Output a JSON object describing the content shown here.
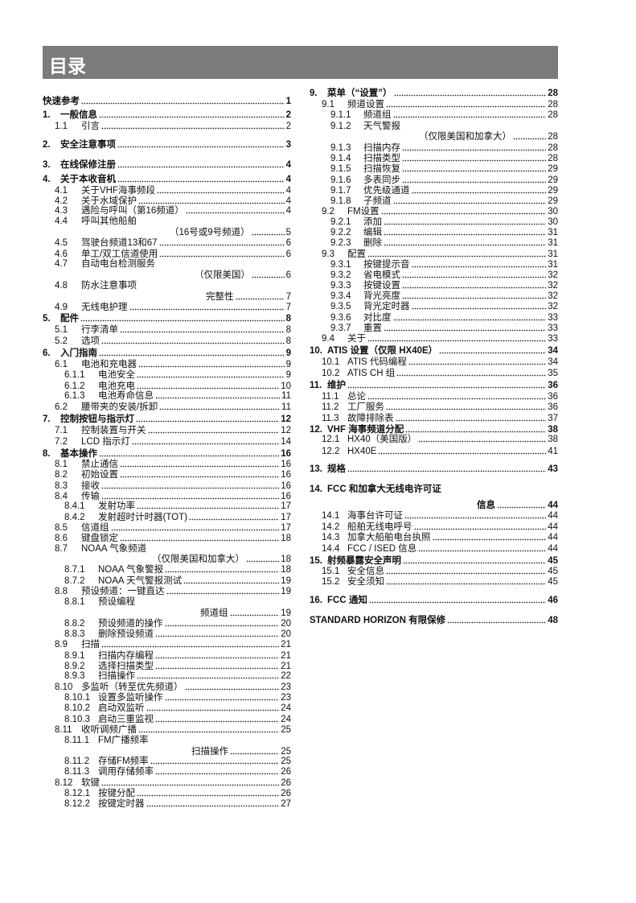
{
  "header": {
    "title": "目录"
  },
  "left": [
    {
      "num": "快速参考",
      "title": "",
      "page": "1",
      "level": 0
    },
    {
      "num": "1.",
      "title": "一般信息",
      "page": "2",
      "level": 0
    },
    {
      "num": "1.1",
      "title": "引言",
      "page": "2",
      "level": 1
    },
    {
      "num": "2.",
      "title": "安全注意事项",
      "page": "3",
      "level": 0
    },
    {
      "num": "3.",
      "title": "在线保修注册",
      "page": "4",
      "level": 0
    },
    {
      "num": "4.",
      "title": "关于本收音机",
      "page": "4",
      "level": 0
    },
    {
      "num": "4.1",
      "title": "关于VHF海事频段",
      "page": "4",
      "level": 1
    },
    {
      "num": "4.2",
      "title": "关于水域保护",
      "page": "4",
      "level": 1
    },
    {
      "num": "4.3",
      "title": "遇险与呼叫（第16频道）",
      "page": "4",
      "level": 1
    },
    {
      "num": "4.4",
      "title": "呼叫其他船舶",
      "cont": "（16号或9号频道）",
      "page": "5",
      "level": 1
    },
    {
      "num": "4.5",
      "title": "驾驶台频道13和67",
      "page": "6",
      "level": 1
    },
    {
      "num": "4.6",
      "title": "单工/双工信道使用",
      "page": "6",
      "level": 1
    },
    {
      "num": "4.7",
      "title": "自动电台检测服务",
      "cont": "（仅限美国）",
      "page": "6",
      "level": 1
    },
    {
      "num": "4.8",
      "title": "防水注意事项",
      "cont": "完整性",
      "page": "7",
      "level": 1
    },
    {
      "num": "4.9",
      "title": "无线电护理",
      "page": "7",
      "level": 1
    },
    {
      "num": "5.",
      "title": "配件",
      "page": "8",
      "level": 0
    },
    {
      "num": "5.1",
      "title": "行李清单",
      "page": "8",
      "level": 1
    },
    {
      "num": "5.2",
      "title": "选项",
      "page": "8",
      "level": 1
    },
    {
      "num": "6.",
      "title": "入门指南",
      "page": "9",
      "level": 0
    },
    {
      "num": "6.1",
      "title": "电池和充电器",
      "page": "9",
      "level": 1
    },
    {
      "num": "6.1.1",
      "title": "电池安全",
      "page": "9",
      "level": 2
    },
    {
      "num": "6.1.2",
      "title": "电池充电",
      "page": "10",
      "level": 2
    },
    {
      "num": "6.1.3",
      "title": "电池寿命信息",
      "page": "11",
      "level": 2
    },
    {
      "num": "6.2",
      "title": "腰带夹的安装/拆卸",
      "page": "11",
      "level": 1
    },
    {
      "num": "7.",
      "title": "控制按钮与指示灯",
      "page": "12",
      "level": 0
    },
    {
      "num": "7.1",
      "title": "控制装置与开关",
      "page": "12",
      "level": 1
    },
    {
      "num": "7.2",
      "title": "LCD 指示灯",
      "page": "14",
      "level": 1
    },
    {
      "num": "8.",
      "title": "基本操作",
      "page": "16",
      "level": 0
    },
    {
      "num": "8.1",
      "title": "禁止通信",
      "page": "16",
      "level": 1
    },
    {
      "num": "8.2",
      "title": "初始设置",
      "page": "16",
      "level": 1
    },
    {
      "num": "8.3",
      "title": "接收",
      "page": "16",
      "level": 1
    },
    {
      "num": "8.4",
      "title": "传输",
      "page": "16",
      "level": 1
    },
    {
      "num": "8.4.1",
      "title": "发射功率",
      "page": "17",
      "level": 2
    },
    {
      "num": "8.4.2",
      "title": "发射超时计时器(TOT)",
      "page": "17",
      "level": 2
    },
    {
      "num": "8.5",
      "title": "信道组",
      "page": "17",
      "level": 1
    },
    {
      "num": "8.6",
      "title": "键盘锁定",
      "page": "18",
      "level": 1
    },
    {
      "num": "8.7",
      "title": "NOAA 气象频道",
      "cont": "（仅限美国和加拿大）",
      "page": "18",
      "level": 1
    },
    {
      "num": "8.7.1",
      "title": "NOAA 气象警报",
      "page": "18",
      "level": 2
    },
    {
      "num": "8.7.2",
      "title": "NOAA 天气警报测试",
      "page": "19",
      "level": 2
    },
    {
      "num": "8.8",
      "title": "预设频道：一键直达",
      "page": "19",
      "level": 1
    },
    {
      "num": "8.8.1",
      "title": "预设编程",
      "cont": "频道组",
      "page": "19",
      "level": 2
    },
    {
      "num": "8.8.2",
      "title": "预设频道的操作",
      "page": "20",
      "level": 2
    },
    {
      "num": "8.8.3",
      "title": "删除预设频道",
      "page": "20",
      "level": 2
    },
    {
      "num": "8.9",
      "title": "扫描",
      "page": "21",
      "level": 1
    },
    {
      "num": "8.9.1",
      "title": "扫描内存编程",
      "page": "21",
      "level": 2
    },
    {
      "num": "8.9.2",
      "title": "选择扫描类型",
      "page": "21",
      "level": 2
    },
    {
      "num": "8.9.3",
      "title": "扫描操作",
      "page": "22",
      "level": 2
    },
    {
      "num": "8.10",
      "title": "多监听（转至优先频道）",
      "page": "23",
      "level": 1
    },
    {
      "num": "8.10.1",
      "title": "设置多监听操作",
      "page": "23",
      "level": 2
    },
    {
      "num": "8.10.2",
      "title": "启动双监听",
      "page": "24",
      "level": 2
    },
    {
      "num": "8.10.3",
      "title": "启动三重监视",
      "page": "24",
      "level": 2
    },
    {
      "num": "8.11",
      "title": "收听调频广播",
      "page": "25",
      "level": 1
    },
    {
      "num": "8.11.1",
      "title": "FM广播频率",
      "cont": "扫描操作",
      "page": "25",
      "level": 2
    },
    {
      "num": "8.11.2",
      "title": "存储FM频率",
      "page": "25",
      "level": 2
    },
    {
      "num": "8.11.3",
      "title": "调用存储频率",
      "page": "26",
      "level": 2
    },
    {
      "num": "8.12",
      "title": "软键",
      "page": "26",
      "level": 1
    },
    {
      "num": "8.12.1",
      "title": "按键分配",
      "page": "26",
      "level": 2
    },
    {
      "num": "8.12.2",
      "title": "按键定时器",
      "page": "27",
      "level": 2
    }
  ],
  "right": [
    {
      "num": "9.",
      "title": "菜单（“设置”）",
      "page": "28",
      "level": 0
    },
    {
      "num": "9.1",
      "title": "频道设置",
      "page": "28",
      "level": 1
    },
    {
      "num": "9.1.1",
      "title": "频道组",
      "page": "28",
      "level": 2
    },
    {
      "num": "9.1.2",
      "title": "天气警报",
      "cont": "（仅限美国和加拿大）",
      "page": "28",
      "level": 2
    },
    {
      "num": "9.1.3",
      "title": "扫描内存",
      "page": "28",
      "level": 2
    },
    {
      "num": "9.1.4",
      "title": "扫描类型",
      "page": "28",
      "level": 2
    },
    {
      "num": "9.1.5",
      "title": "扫描恢复",
      "page": "29",
      "level": 2
    },
    {
      "num": "9.1.6",
      "title": "多表同步",
      "page": "29",
      "level": 2
    },
    {
      "num": "9.1.7",
      "title": "优先级通道",
      "page": "29",
      "level": 2
    },
    {
      "num": "9.1.8",
      "title": "子频道",
      "page": "29",
      "level": 2
    },
    {
      "num": "9.2",
      "title": "FM设置",
      "page": "30",
      "level": 1
    },
    {
      "num": "9.2.1",
      "title": "添加",
      "page": "30",
      "level": 2
    },
    {
      "num": "9.2.2",
      "title": "编辑",
      "page": "31",
      "level": 2
    },
    {
      "num": "9.2.3",
      "title": "删除",
      "page": "31",
      "level": 2
    },
    {
      "num": "9.3",
      "title": "配置",
      "page": "31",
      "level": 1
    },
    {
      "num": "9.3.1",
      "title": "按键提示音",
      "page": "31",
      "level": 2
    },
    {
      "num": "9.3.2",
      "title": "省电模式",
      "page": "32",
      "level": 2
    },
    {
      "num": "9.3.3",
      "title": "按键设置",
      "page": "32",
      "level": 2
    },
    {
      "num": "9.3.4",
      "title": "背光亮度",
      "page": "32",
      "level": 2
    },
    {
      "num": "9.3.5",
      "title": "背光定时器",
      "page": "32",
      "level": 2
    },
    {
      "num": "9.3.6",
      "title": "对比度",
      "page": "33",
      "level": 2
    },
    {
      "num": "9.3.7",
      "title": "重置",
      "page": "33",
      "level": 2
    },
    {
      "num": "9.4",
      "title": "关于",
      "page": "33",
      "level": 1
    },
    {
      "num": "10.",
      "title": "ATIS 设置（仅限 HX40E）",
      "page": "34",
      "level": 0
    },
    {
      "num": "10.1",
      "title": "ATIS 代码编程",
      "page": "34",
      "level": 1
    },
    {
      "num": "10.2",
      "title": "ATIS CH 组",
      "page": "35",
      "level": 1
    },
    {
      "num": "11.",
      "title": "维护",
      "page": "36",
      "level": 0
    },
    {
      "num": "11.1",
      "title": "总论",
      "page": "36",
      "level": 1
    },
    {
      "num": "11.2",
      "title": "工厂服务",
      "page": "36",
      "level": 1
    },
    {
      "num": "11.3",
      "title": "故障排除表",
      "page": "37",
      "level": 1
    },
    {
      "num": "12.",
      "title": "VHF 海事频道分配",
      "page": "38",
      "level": 0
    },
    {
      "num": "12.1",
      "title": "HX40（美国版）",
      "page": "38",
      "level": 1
    },
    {
      "num": "12.2",
      "title": "HX40E",
      "page": "41",
      "level": 1
    },
    {
      "num": "13.",
      "title": "规格",
      "page": "43",
      "level": 0
    },
    {
      "num": "14.",
      "title": "FCC 和加拿大无线电许可证",
      "cont": "信息",
      "page": "44",
      "level": 0
    },
    {
      "num": "14.1",
      "title": "海事台许可证",
      "page": "44",
      "level": 1
    },
    {
      "num": "14.2",
      "title": "船舶无线电呼号",
      "page": "44",
      "level": 1
    },
    {
      "num": "14.3",
      "title": "加拿大船舶电台执照",
      "page": "44",
      "level": 1
    },
    {
      "num": "14.4",
      "title": "FCC / ISED 信息",
      "page": "44",
      "level": 1
    },
    {
      "num": "15.",
      "title": "射频暴露安全声明",
      "page": "45",
      "level": 0
    },
    {
      "num": "15.1",
      "title": "安全信息",
      "page": "45",
      "level": 1
    },
    {
      "num": "15.2",
      "title": "安全须知",
      "page": "45",
      "level": 1
    },
    {
      "num": "16.",
      "title": "FCC 通知",
      "page": "46",
      "level": 0
    },
    {
      "num": "STANDARD HORIZON 有限保修",
      "title": "",
      "page": "48",
      "level": 0
    }
  ]
}
